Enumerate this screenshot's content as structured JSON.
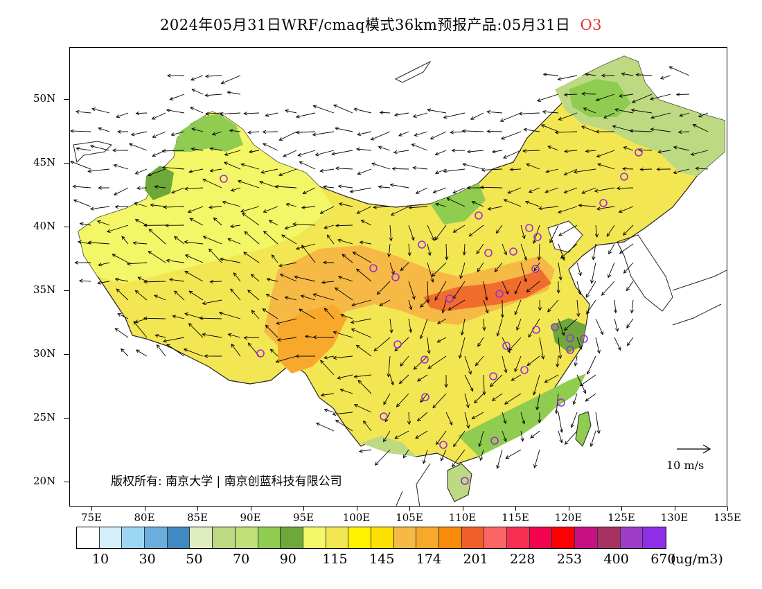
{
  "title": {
    "main": "2024年05月31日WRF/cmaq模式36km预报产品:05月31日",
    "species": "O3"
  },
  "map": {
    "lat_labels": [
      "50N",
      "45N",
      "40N",
      "35N",
      "30N",
      "25N",
      "20N"
    ],
    "lon_labels": [
      "75E",
      "80E",
      "85E",
      "90E",
      "95E",
      "100E",
      "105E",
      "110E",
      "115E",
      "120E",
      "125E",
      "130E",
      "135E"
    ],
    "copyright": "版权所有: 南京大学 | 南京创蓝科技有限公司",
    "wind_reference": "10 m/s"
  },
  "legend": {
    "colors": [
      "#ffffff",
      "#d4eefa",
      "#9dd6f2",
      "#6aaedd",
      "#3f8ac2",
      "#dfecc0",
      "#bdd981",
      "#c0e07a",
      "#8fcc50",
      "#6ea83a",
      "#f3f768",
      "#f3e653",
      "#fff200",
      "#fde000",
      "#f6b945",
      "#f8a92b",
      "#f98a0b",
      "#ef5f2a",
      "#fb6565",
      "#f52e52",
      "#f3034e",
      "#fe0000",
      "#c71183",
      "#a63262",
      "#9d3dc8",
      "#8e2ee6"
    ],
    "labels": [
      "10",
      "30",
      "50",
      "70",
      "90",
      "115",
      "145",
      "174",
      "201",
      "228",
      "253",
      "400",
      "670"
    ],
    "units": "(ug/m3)"
  }
}
